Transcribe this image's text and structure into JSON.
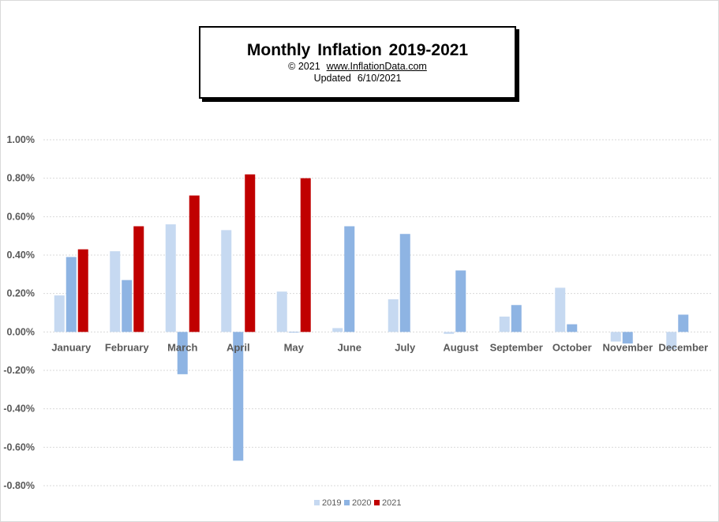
{
  "header": {
    "title": "Monthly  Inflation  2019-2021",
    "copyright": "© 2021",
    "website": "www.InflationData.com",
    "updated_label": "Updated",
    "updated_date": "6/10/2021"
  },
  "chart_data": {
    "type": "bar",
    "title": "Monthly  Inflation  2019-2021",
    "xlabel": "",
    "ylabel": "",
    "categories": [
      "January",
      "February",
      "March",
      "April",
      "May",
      "June",
      "July",
      "August",
      "September",
      "October",
      "November",
      "December"
    ],
    "series": [
      {
        "name": "2019",
        "color": "#c6d9f1",
        "values": [
          0.19,
          0.42,
          0.56,
          0.53,
          0.21,
          0.02,
          0.17,
          -0.01,
          0.08,
          0.23,
          -0.05,
          -0.09
        ]
      },
      {
        "name": "2020",
        "color": "#8eb4e3",
        "values": [
          0.39,
          0.27,
          -0.22,
          -0.67,
          0.0,
          0.55,
          0.51,
          0.32,
          0.14,
          0.04,
          -0.06,
          0.09
        ]
      },
      {
        "name": "2021",
        "color": "#c00000",
        "values": [
          0.43,
          0.55,
          0.71,
          0.82,
          0.8,
          null,
          null,
          null,
          null,
          null,
          null,
          null
        ]
      }
    ],
    "ylim": [
      -0.8,
      1.0
    ],
    "yticks": [
      1.0,
      0.8,
      0.6,
      0.4,
      0.2,
      0.0,
      -0.2,
      -0.4,
      -0.6,
      -0.8
    ],
    "ytick_labels": [
      "1.00%",
      "0.80%",
      "0.60%",
      "0.40%",
      "0.20%",
      "0.00%",
      "-0.20%",
      "-0.40%",
      "-0.60%",
      "-0.80%"
    ],
    "grid": true,
    "legend_position": "bottom"
  }
}
